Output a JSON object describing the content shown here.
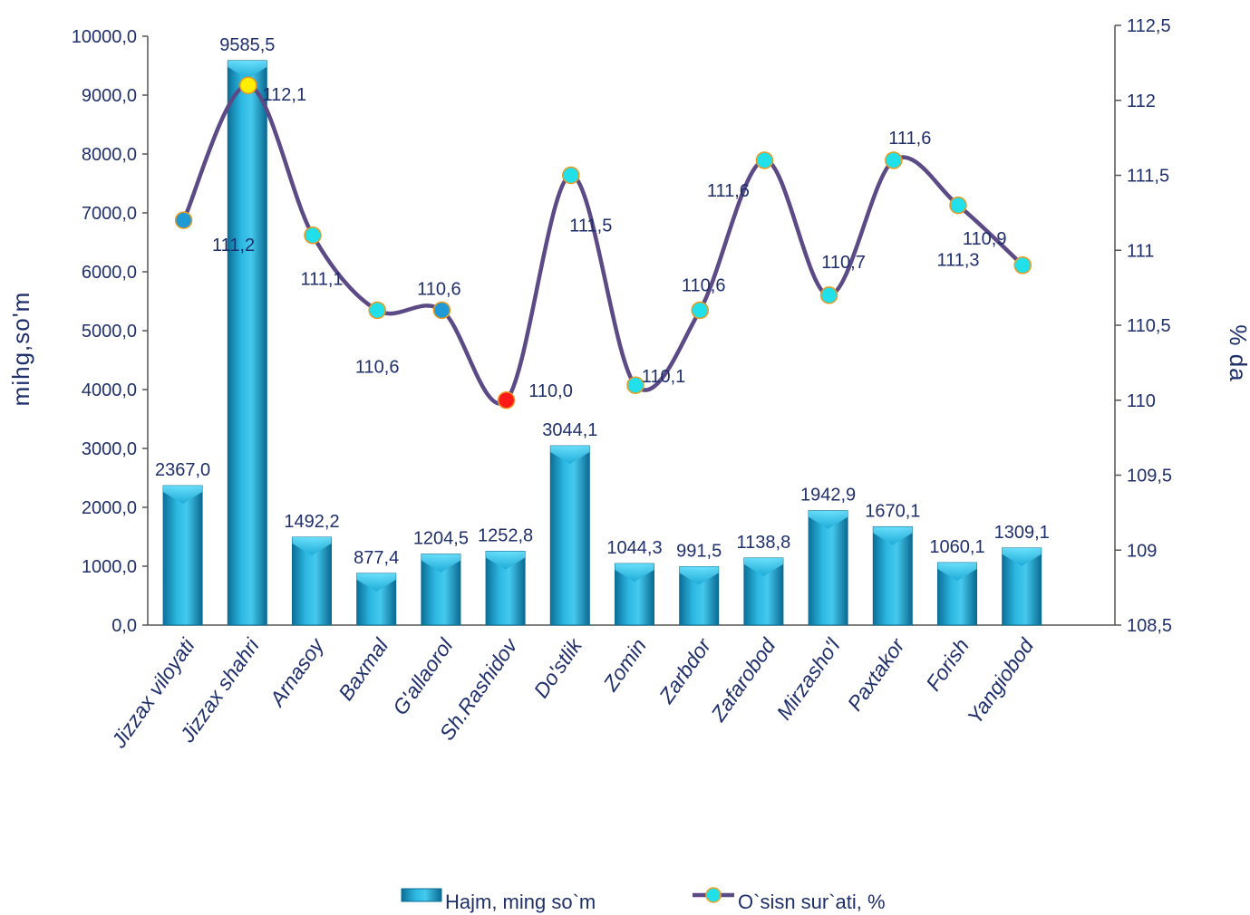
{
  "chart_data": {
    "type": "bar",
    "categories": [
      "Jizzax viloyati",
      "Jizzax shahri",
      "Arnasoy",
      "Baxmal",
      "G'allaorol",
      "Sh.Rashidov",
      "Do'stlik",
      "Zomin",
      "Zarbdor",
      "Zafarobod",
      "Mirzasho'l",
      "Paxtakor",
      "Forish",
      "Yangiobod"
    ],
    "series": [
      {
        "name": "Hajm, ming so`m",
        "type": "bar",
        "axis": "left",
        "values": [
          2367.0,
          9585.5,
          1492.2,
          877.4,
          1204.5,
          1252.8,
          3044.1,
          1044.3,
          991.5,
          1138.8,
          1942.9,
          1670.1,
          1060.1,
          1309.1
        ],
        "labels": [
          "2367,0",
          "9585,5",
          "1492,2",
          "877,4",
          "1204,5",
          "1252,8",
          "3044,1",
          "1044,3",
          "991,5",
          "1138,8",
          "1942,9",
          "1670,1",
          "1060,1",
          "1309,1"
        ],
        "color": "#1aa3d1"
      },
      {
        "name": "O`sisn sur`ati, %",
        "type": "line",
        "axis": "right",
        "values": [
          111.2,
          112.1,
          111.1,
          110.6,
          110.6,
          110.0,
          111.5,
          110.1,
          110.6,
          111.6,
          110.7,
          111.6,
          111.3,
          110.9
        ],
        "labels": [
          "111,2",
          "112,1",
          "111,1",
          "110,6",
          "110,6",
          "110,0",
          "111,5",
          "110,1",
          "110,6",
          "111,6",
          "110,7",
          "111,6",
          "111,3",
          "110,9"
        ],
        "color": "#5b4a86",
        "marker_colors": [
          "#1f9ad6",
          "#ffee00",
          "#22e0ea",
          "#22e0ea",
          "#1f9ad6",
          "#ff1a1a",
          "#22e0ea",
          "#22e0ea",
          "#22e0ea",
          "#22e0ea",
          "#22e0ea",
          "#22e0ea",
          "#22e0ea",
          "#22e0ea"
        ]
      }
    ],
    "ylabel": "mihg,so'm",
    "ylabel_right": "% da",
    "ylim": [
      0,
      10000
    ],
    "ylim_right": [
      108.5,
      112.5
    ],
    "yticks": [
      "0,0",
      "1000,0",
      "2000,0",
      "3000,0",
      "4000,0",
      "5000,0",
      "6000,0",
      "7000,0",
      "8000,0",
      "9000,0",
      "10000,0"
    ],
    "yticks_right": [
      "108,5",
      "109",
      "109,5",
      "110",
      "110,5",
      "111",
      "111,5",
      "112",
      "112,5"
    ],
    "grid": false,
    "legend_position": "bottom"
  }
}
